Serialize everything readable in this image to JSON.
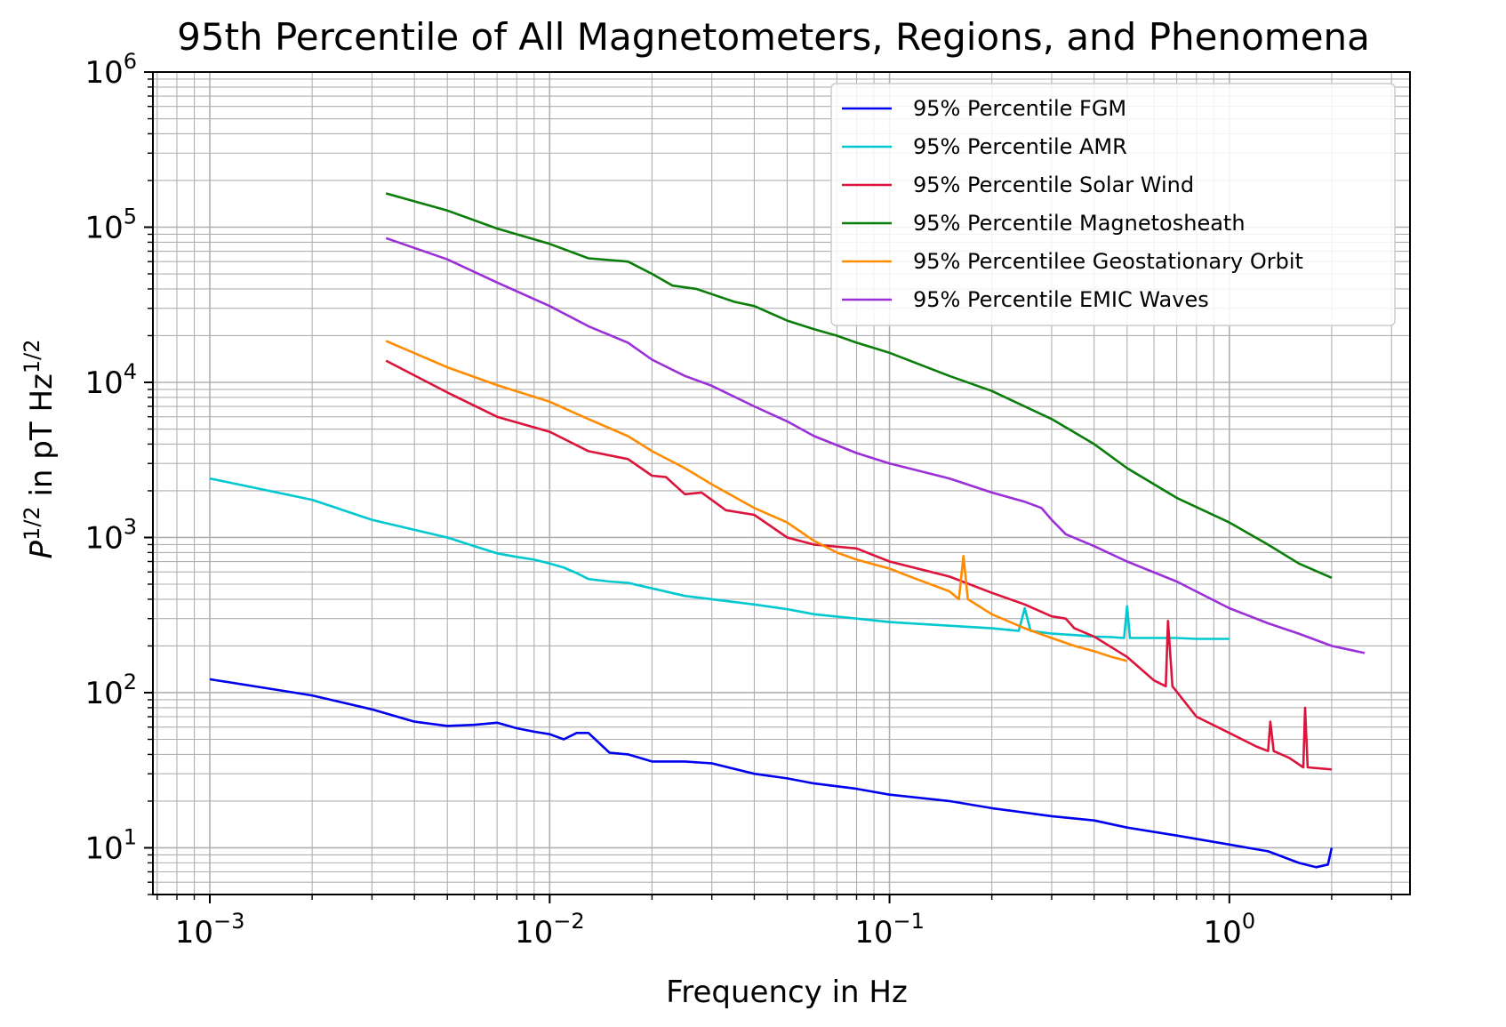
{
  "chart_data": {
    "type": "line",
    "title": "95th Percentile of All Magnetometers, Regions, and Phenomena",
    "xlabel": "Frequency in Hz",
    "ylabel": {
      "base": "P",
      "base_exp": "1/2",
      "middle": " in pT Hz",
      "unit_exp": "1/2"
    },
    "xscale": "log",
    "yscale": "log",
    "xlim": [
      0.00068,
      3.4
    ],
    "ylim": [
      5,
      1000000
    ],
    "grid": true,
    "legend_position": "top-right",
    "x_ticks": [
      {
        "value": 0.001,
        "base": "10",
        "exp": "−3"
      },
      {
        "value": 0.01,
        "base": "10",
        "exp": "−2"
      },
      {
        "value": 0.1,
        "base": "10",
        "exp": "−1"
      },
      {
        "value": 1,
        "base": "10",
        "exp": "0"
      }
    ],
    "y_ticks": [
      {
        "value": 10,
        "base": "10",
        "exp": "1"
      },
      {
        "value": 100,
        "base": "10",
        "exp": "2"
      },
      {
        "value": 1000,
        "base": "10",
        "exp": "3"
      },
      {
        "value": 10000,
        "base": "10",
        "exp": "4"
      },
      {
        "value": 100000,
        "base": "10",
        "exp": "5"
      },
      {
        "value": 1000000,
        "base": "10",
        "exp": "6"
      }
    ],
    "series": [
      {
        "name": "95% Percentile FGM",
        "color": "#0000ee",
        "x": [
          0.001,
          0.002,
          0.003,
          0.004,
          0.005,
          0.006,
          0.007,
          0.008,
          0.009,
          0.01,
          0.011,
          0.012,
          0.013,
          0.015,
          0.017,
          0.02,
          0.025,
          0.03,
          0.04,
          0.05,
          0.06,
          0.08,
          0.1,
          0.15,
          0.2,
          0.3,
          0.4,
          0.5,
          0.7,
          1.0,
          1.3,
          1.6,
          1.8,
          1.95,
          2.0
        ],
        "y": [
          122,
          96,
          78,
          65,
          61,
          62,
          64,
          59,
          56,
          54,
          50,
          55,
          55,
          41,
          40,
          36,
          36,
          35,
          30,
          28,
          26,
          24,
          22,
          20,
          18,
          16,
          15,
          13.5,
          12,
          10.5,
          9.5,
          8,
          7.5,
          7.8,
          10
        ]
      },
      {
        "name": "95% Percentile AMR",
        "color": "#00c8d0",
        "x": [
          0.001,
          0.002,
          0.003,
          0.004,
          0.005,
          0.006,
          0.007,
          0.008,
          0.009,
          0.01,
          0.011,
          0.012,
          0.013,
          0.015,
          0.017,
          0.02,
          0.025,
          0.03,
          0.04,
          0.05,
          0.06,
          0.08,
          0.1,
          0.15,
          0.2,
          0.24,
          0.25,
          0.26,
          0.3,
          0.35,
          0.4,
          0.45,
          0.49,
          0.5,
          0.51,
          0.6,
          0.7,
          0.8,
          0.9,
          1.0
        ],
        "y": [
          2400,
          1750,
          1300,
          1120,
          1000,
          880,
          790,
          750,
          720,
          680,
          640,
          590,
          540,
          520,
          510,
          470,
          420,
          400,
          370,
          345,
          320,
          300,
          285,
          270,
          260,
          250,
          350,
          250,
          240,
          235,
          230,
          228,
          225,
          360,
          225,
          225,
          225,
          222,
          222,
          222
        ]
      },
      {
        "name": "95% Percentile Solar Wind",
        "color": "#dc143c",
        "x": [
          0.0033,
          0.005,
          0.007,
          0.01,
          0.013,
          0.017,
          0.02,
          0.022,
          0.025,
          0.028,
          0.033,
          0.04,
          0.05,
          0.06,
          0.08,
          0.1,
          0.15,
          0.2,
          0.25,
          0.3,
          0.33,
          0.35,
          0.4,
          0.5,
          0.6,
          0.65,
          0.66,
          0.68,
          0.8,
          1.0,
          1.2,
          1.3,
          1.32,
          1.35,
          1.5,
          1.65,
          1.67,
          1.7,
          2.0
        ],
        "y": [
          13800,
          8600,
          6000,
          4800,
          3600,
          3200,
          2500,
          2450,
          1900,
          1950,
          1500,
          1400,
          1000,
          900,
          850,
          700,
          560,
          440,
          370,
          310,
          300,
          260,
          230,
          170,
          120,
          110,
          290,
          110,
          70,
          55,
          45,
          42,
          65,
          42,
          38,
          33,
          80,
          33,
          32
        ]
      },
      {
        "name": "95% Percentile Magnetosheath",
        "color": "#0a7d0a",
        "x": [
          0.0033,
          0.005,
          0.007,
          0.01,
          0.013,
          0.017,
          0.02,
          0.023,
          0.027,
          0.03,
          0.035,
          0.04,
          0.05,
          0.06,
          0.07,
          0.08,
          0.1,
          0.15,
          0.2,
          0.3,
          0.4,
          0.5,
          0.7,
          1.0,
          1.3,
          1.6,
          2.0
        ],
        "y": [
          165000,
          128000,
          98000,
          78000,
          63000,
          60000,
          50000,
          42000,
          40000,
          37000,
          33000,
          31000,
          25000,
          22000,
          20000,
          18000,
          15500,
          11000,
          8800,
          5800,
          4000,
          2800,
          1800,
          1250,
          900,
          680,
          550
        ]
      },
      {
        "name": "95% Percentilee Geostationary Orbit",
        "color": "#ff8c00",
        "x": [
          0.0033,
          0.005,
          0.007,
          0.01,
          0.013,
          0.017,
          0.02,
          0.025,
          0.03,
          0.04,
          0.05,
          0.06,
          0.07,
          0.08,
          0.1,
          0.12,
          0.15,
          0.16,
          0.165,
          0.17,
          0.2,
          0.25,
          0.3,
          0.35,
          0.4,
          0.45,
          0.5
        ],
        "y": [
          18500,
          12500,
          9600,
          7500,
          5800,
          4500,
          3600,
          2800,
          2200,
          1550,
          1250,
          950,
          800,
          720,
          630,
          540,
          450,
          400,
          760,
          400,
          320,
          260,
          225,
          200,
          185,
          170,
          160
        ]
      },
      {
        "name": "95% Percentile EMIC Waves",
        "color": "#9b30d9",
        "x": [
          0.0033,
          0.005,
          0.007,
          0.01,
          0.013,
          0.017,
          0.02,
          0.025,
          0.03,
          0.04,
          0.05,
          0.06,
          0.08,
          0.1,
          0.15,
          0.2,
          0.25,
          0.28,
          0.3,
          0.33,
          0.4,
          0.5,
          0.7,
          1.0,
          1.3,
          1.6,
          2.0,
          2.5
        ],
        "y": [
          85000,
          62000,
          44000,
          31000,
          23000,
          18000,
          14000,
          11000,
          9500,
          7000,
          5600,
          4500,
          3500,
          3000,
          2400,
          1950,
          1700,
          1550,
          1300,
          1050,
          880,
          700,
          520,
          350,
          280,
          240,
          200,
          180
        ]
      }
    ]
  }
}
